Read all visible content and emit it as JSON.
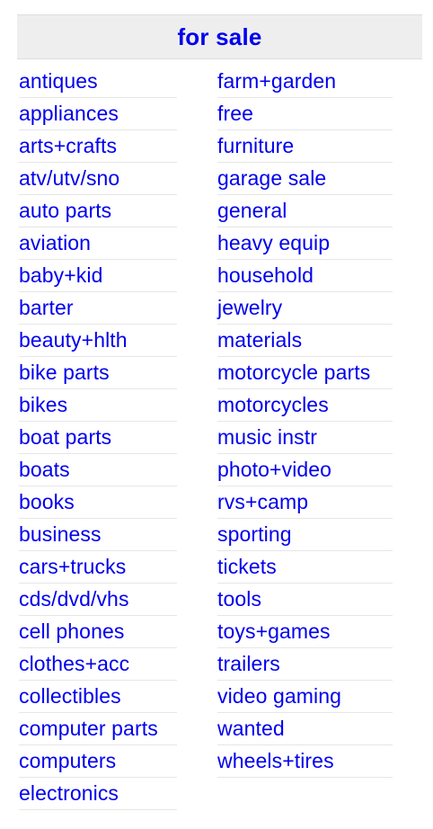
{
  "section": {
    "title": "for sale",
    "link_color": "#0000ee",
    "header_bg": "#eeeeee"
  },
  "left_column": [
    "antiques",
    "appliances",
    "arts+crafts",
    "atv/utv/sno",
    "auto parts",
    "aviation",
    "baby+kid",
    "barter",
    "beauty+hlth",
    "bike parts",
    "bikes",
    "boat parts",
    "boats",
    "books",
    "business",
    "cars+trucks",
    "cds/dvd/vhs",
    "cell phones",
    "clothes+acc",
    "collectibles",
    "computer parts",
    "computers",
    "electronics"
  ],
  "right_column": [
    "farm+garden",
    "free",
    "furniture",
    "garage sale",
    "general",
    "heavy equip",
    "household",
    "jewelry",
    "materials",
    "motorcycle parts",
    "motorcycles",
    "music instr",
    "photo+video",
    "rvs+camp",
    "sporting",
    "tickets",
    "tools",
    "toys+games",
    "trailers",
    "video gaming",
    "wanted",
    "wheels+tires"
  ]
}
